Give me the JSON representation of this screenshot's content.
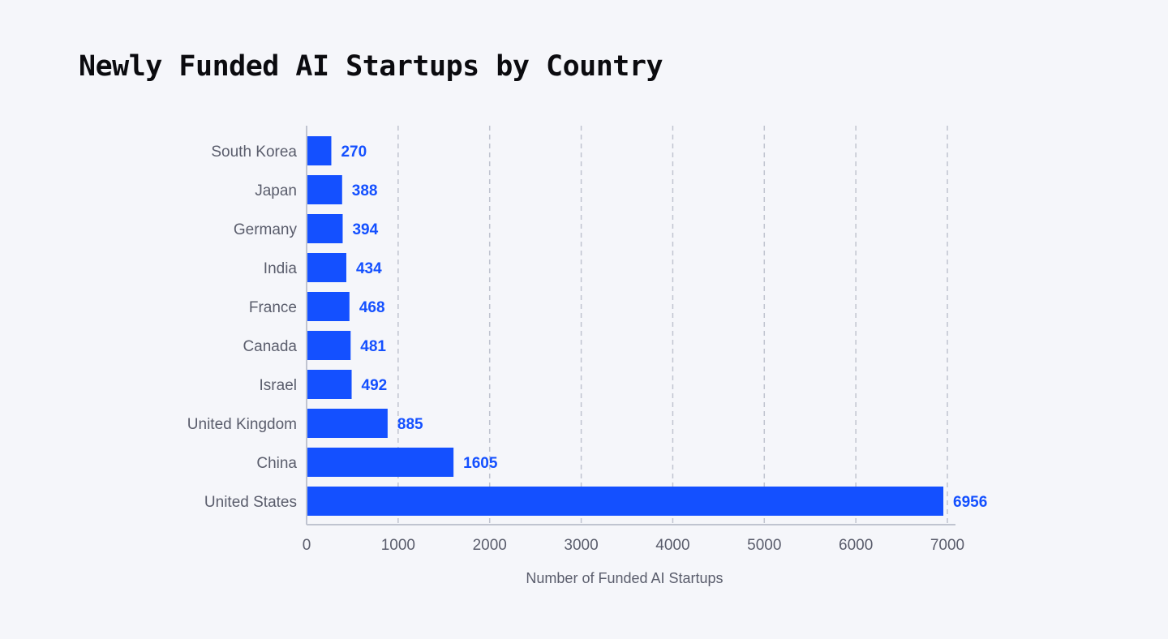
{
  "chart_data": {
    "type": "bar",
    "orientation": "horizontal",
    "title": "Newly Funded AI Startups by Country",
    "xlabel": "Number of Funded AI Startups",
    "ylabel": "",
    "categories": [
      "South Korea",
      "Japan",
      "Germany",
      "India",
      "France",
      "Canada",
      "Israel",
      "United Kingdom",
      "China",
      "United States"
    ],
    "values": [
      270,
      388,
      394,
      434,
      468,
      481,
      492,
      885,
      1605,
      6956
    ],
    "xlim": [
      0,
      7000
    ],
    "xticks": [
      0,
      1000,
      2000,
      3000,
      4000,
      5000,
      6000,
      7000
    ],
    "grid": "vertical dashed",
    "data_labels": true,
    "colors": {
      "bar": "#1450ff",
      "label": "#1450ff",
      "text": "#5a5d6c",
      "grid": "#c0c4d0",
      "background": "#f5f6fa"
    }
  }
}
